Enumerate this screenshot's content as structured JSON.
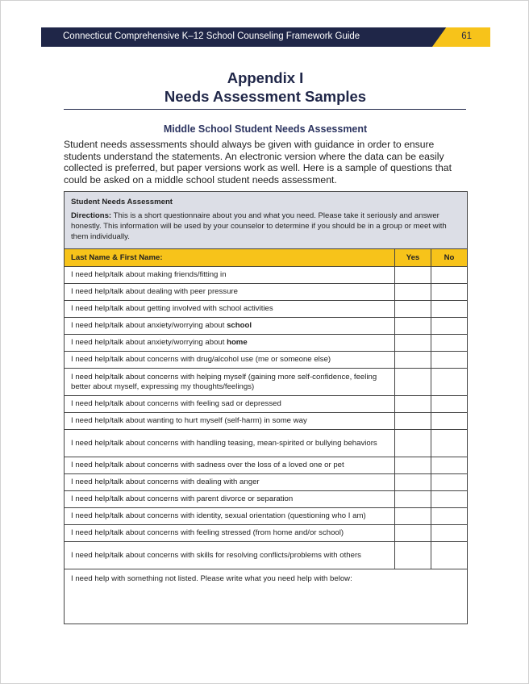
{
  "header": {
    "title": "Connecticut Comprehensive K–12 School Counseling Framework Guide",
    "page_number": "61"
  },
  "title_line1": "Appendix I",
  "title_line2": "Needs Assessment Samples",
  "subtitle": "Middle School Student Needs Assessment",
  "intro": "Student needs assessments should always be given with guidance in order to ensure students understand the statements. An electronic version where the data can be easily collected is preferred, but paper versions work as well. Here is a sample of questions that could be asked on a middle school student needs assessment.",
  "table": {
    "heading": "Student Needs Assessment",
    "directions_label": "Directions:",
    "directions": " This is a short questionnaire about you and what you need. Please take it seriously and answer honestly. This information will be used by your counselor to determine if you should be in a group or meet with them individually.",
    "col_name": "Last Name & First Name:",
    "col_yes": "Yes",
    "col_no": "No",
    "rows": [
      {
        "text": "I need help/talk about making friends/fitting in",
        "bold": ""
      },
      {
        "text": "I need help/talk about dealing with peer pressure",
        "bold": ""
      },
      {
        "text": "I need help/talk about getting involved with school activities",
        "bold": ""
      },
      {
        "text": "I need help/talk about anxiety/worrying about ",
        "bold": "school"
      },
      {
        "text": "I need help/talk about anxiety/worrying about ",
        "bold": "home"
      },
      {
        "text": "I need help/talk about concerns with drug/alcohol use (me or someone else)",
        "bold": ""
      },
      {
        "text": "I need help/talk about concerns with helping myself (gaining more self-confidence, feeling better about myself, expressing my thoughts/feelings)",
        "bold": "",
        "tall": true
      },
      {
        "text": "I need help/talk about concerns with feeling sad or depressed",
        "bold": ""
      },
      {
        "text": "I need help/talk about wanting to hurt myself (self-harm) in some way",
        "bold": ""
      },
      {
        "text": "I need help/talk about concerns with handling teasing, mean-spirited or bullying behaviors",
        "bold": "",
        "tall": true
      },
      {
        "text": "I need help/talk about concerns with sadness over the loss of a loved one or pet",
        "bold": ""
      },
      {
        "text": "I need help/talk about concerns with dealing with anger",
        "bold": ""
      },
      {
        "text": "I need help/talk about concerns with parent divorce or separation",
        "bold": ""
      },
      {
        "text": "I need help/talk about concerns with identity, sexual orientation (questioning who I am)",
        "bold": ""
      },
      {
        "text": "I need help/talk about concerns with feeling stressed (from home and/or school)",
        "bold": ""
      },
      {
        "text": "I need help/talk about concerns with skills for resolving conflicts/problems with others",
        "bold": "",
        "tall": true
      }
    ],
    "other": "I need help with something not listed. Please write what you need help with below:"
  }
}
